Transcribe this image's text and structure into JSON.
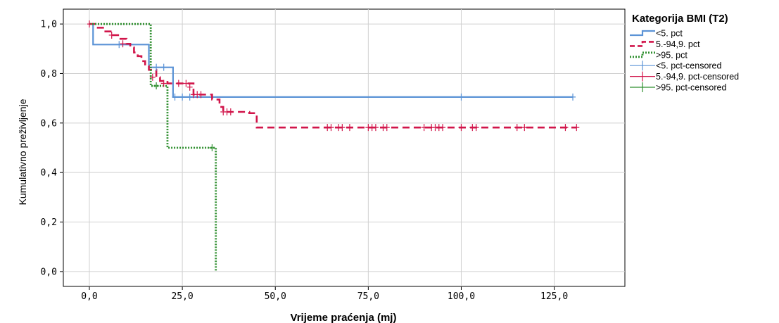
{
  "chart_data": {
    "type": "line",
    "subtype": "kaplan-meier",
    "xlabel": "Vrijeme praćenja (mj)",
    "ylabel": "Kumulativno preživljenje",
    "xlim": [
      -7,
      144
    ],
    "ylim": [
      -0.06,
      1.06
    ],
    "x_ticks": [
      "0,0",
      "25,0",
      "50,0",
      "75,0",
      "100,0",
      "125,0"
    ],
    "x_tick_values": [
      0,
      25,
      50,
      75,
      100,
      125
    ],
    "y_ticks": [
      "0,0",
      "0,2",
      "0,4",
      "0,6",
      "0,8",
      "1,0"
    ],
    "y_tick_values": [
      0,
      0.2,
      0.4,
      0.6,
      0.8,
      1.0
    ],
    "grid": true,
    "legend_position": "right",
    "legend_title": "Kategorija BMI (T2)",
    "legend_entries": [
      {
        "label": "<5. pct",
        "kind": "step",
        "series": 0
      },
      {
        "label": "5.-94,9. pct",
        "kind": "step",
        "series": 1
      },
      {
        "label": ">95. pct",
        "kind": "step",
        "series": 2
      },
      {
        "label": "<5. pct-censored",
        "kind": "censor",
        "series": 0
      },
      {
        "label": "5.-94,9. pct-censored",
        "kind": "censor",
        "series": 1
      },
      {
        "label": ">95. pct-censored",
        "kind": "censor",
        "series": 2
      }
    ],
    "series": [
      {
        "name": "<5. pct",
        "color": "#5b93d6",
        "dash": "solid",
        "steps": [
          [
            0,
            1.0
          ],
          [
            1,
            0.917
          ],
          [
            16,
            0.825
          ],
          [
            22.5,
            0.705
          ],
          [
            130,
            0.705
          ]
        ],
        "censored": [
          [
            8,
            0.917
          ],
          [
            18,
            0.825
          ],
          [
            20,
            0.825
          ],
          [
            23,
            0.705
          ],
          [
            25,
            0.705
          ],
          [
            27,
            0.705
          ],
          [
            100,
            0.705
          ],
          [
            130,
            0.705
          ]
        ]
      },
      {
        "name": "5.-94,9. pct",
        "color": "#d1154a",
        "dash": "dashed",
        "steps": [
          [
            0,
            1.0
          ],
          [
            2,
            0.985
          ],
          [
            4,
            0.97
          ],
          [
            6,
            0.955
          ],
          [
            8,
            0.94
          ],
          [
            10,
            0.92
          ],
          [
            11,
            0.905
          ],
          [
            12,
            0.885
          ],
          [
            13,
            0.87
          ],
          [
            14,
            0.85
          ],
          [
            15,
            0.83
          ],
          [
            16,
            0.815
          ],
          [
            18,
            0.785
          ],
          [
            19,
            0.77
          ],
          [
            21,
            0.76
          ],
          [
            23,
            0.76
          ],
          [
            28,
            0.715
          ],
          [
            33,
            0.695
          ],
          [
            35,
            0.665
          ],
          [
            36,
            0.645
          ],
          [
            43,
            0.64
          ],
          [
            45,
            0.582
          ],
          [
            131,
            0.582
          ]
        ],
        "censored": [
          [
            6,
            0.955
          ],
          [
            9,
            0.92
          ],
          [
            17,
            0.785
          ],
          [
            20,
            0.76
          ],
          [
            24,
            0.76
          ],
          [
            26,
            0.76
          ],
          [
            27,
            0.745
          ],
          [
            28,
            0.715
          ],
          [
            29,
            0.715
          ],
          [
            30,
            0.715
          ],
          [
            36,
            0.645
          ],
          [
            37,
            0.645
          ],
          [
            38,
            0.645
          ],
          [
            64,
            0.582
          ],
          [
            65,
            0.582
          ],
          [
            67,
            0.582
          ],
          [
            68,
            0.582
          ],
          [
            70,
            0.582
          ],
          [
            75,
            0.582
          ],
          [
            76,
            0.582
          ],
          [
            77,
            0.582
          ],
          [
            79,
            0.582
          ],
          [
            80,
            0.582
          ],
          [
            90,
            0.582
          ],
          [
            92,
            0.582
          ],
          [
            93,
            0.582
          ],
          [
            94,
            0.582
          ],
          [
            95,
            0.582
          ],
          [
            100,
            0.582
          ],
          [
            103,
            0.582
          ],
          [
            104,
            0.582
          ],
          [
            115,
            0.582
          ],
          [
            117,
            0.582
          ],
          [
            128,
            0.582
          ],
          [
            131,
            0.582
          ]
        ],
        "start_marker": [
          0,
          1.0
        ]
      },
      {
        "name": ">95. pct",
        "color": "#2f8f2f",
        "dash": "dotted",
        "steps": [
          [
            0,
            1.0
          ],
          [
            16.5,
            0.75
          ],
          [
            21,
            0.5
          ],
          [
            34,
            0.5
          ],
          [
            34,
            0.0
          ]
        ],
        "censored": [
          [
            18,
            0.75
          ],
          [
            33,
            0.5
          ]
        ]
      }
    ]
  }
}
